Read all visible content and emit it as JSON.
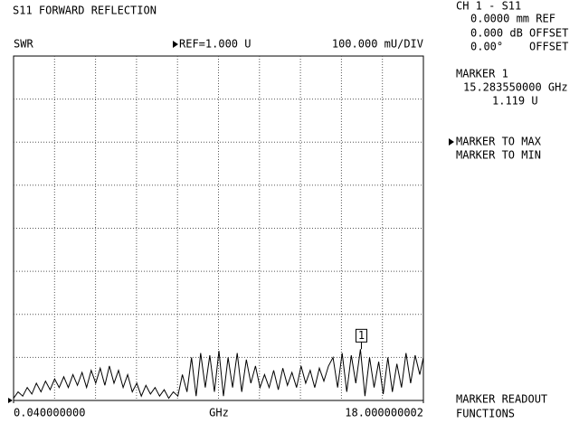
{
  "chart_data": {
    "type": "line",
    "title": "S11 FORWARD REFLECTION",
    "y_label": "SWR",
    "reference": "REF=1.000 U",
    "scale": "100.000 mU/DIV",
    "x_label": "GHz",
    "xlim": [
      0.04,
      18.000000002
    ],
    "ylim": [
      1.0,
      1.8
    ],
    "xticks": [
      {
        "value": 0.04,
        "label": "0.040000000"
      },
      {
        "value": 18.000000002,
        "label": "18.000000002"
      }
    ],
    "grid": true,
    "color": "#000000",
    "x": [
      0.04,
      0.24,
      0.44,
      0.64,
      0.84,
      1.04,
      1.24,
      1.44,
      1.64,
      1.84,
      2.04,
      2.24,
      2.44,
      2.64,
      2.84,
      3.04,
      3.24,
      3.44,
      3.64,
      3.84,
      4.04,
      4.24,
      4.44,
      4.64,
      4.84,
      5.04,
      5.24,
      5.44,
      5.64,
      5.84,
      6.04,
      6.24,
      6.44,
      6.64,
      6.84,
      7.04,
      7.24,
      7.44,
      7.64,
      7.84,
      8.04,
      8.24,
      8.44,
      8.64,
      8.84,
      9.04,
      9.24,
      9.44,
      9.64,
      9.84,
      10.04,
      10.24,
      10.44,
      10.64,
      10.84,
      11.04,
      11.24,
      11.44,
      11.64,
      11.84,
      12.04,
      12.24,
      12.44,
      12.64,
      12.84,
      13.04,
      13.24,
      13.44,
      13.64,
      13.84,
      14.04,
      14.24,
      14.44,
      14.64,
      14.84,
      15.04,
      15.24,
      15.44,
      15.64,
      15.84,
      16.04,
      16.24,
      16.44,
      16.64,
      16.84,
      17.04,
      17.24,
      17.44,
      17.64,
      17.84,
      18.000000002
    ],
    "values": [
      1.005,
      1.02,
      1.01,
      1.03,
      1.015,
      1.04,
      1.02,
      1.045,
      1.025,
      1.05,
      1.03,
      1.055,
      1.03,
      1.06,
      1.035,
      1.065,
      1.03,
      1.07,
      1.04,
      1.075,
      1.035,
      1.08,
      1.04,
      1.07,
      1.03,
      1.06,
      1.02,
      1.04,
      1.01,
      1.035,
      1.015,
      1.03,
      1.01,
      1.025,
      1.005,
      1.02,
      1.01,
      1.06,
      1.02,
      1.1,
      1.01,
      1.11,
      1.03,
      1.105,
      1.02,
      1.115,
      1.01,
      1.1,
      1.03,
      1.11,
      1.02,
      1.095,
      1.04,
      1.08,
      1.03,
      1.06,
      1.03,
      1.07,
      1.025,
      1.075,
      1.035,
      1.065,
      1.03,
      1.08,
      1.04,
      1.07,
      1.03,
      1.075,
      1.045,
      1.08,
      1.1,
      1.03,
      1.11,
      1.02,
      1.105,
      1.04,
      1.119,
      1.01,
      1.1,
      1.03,
      1.09,
      1.015,
      1.1,
      1.02,
      1.085,
      1.03,
      1.11,
      1.04,
      1.105,
      1.06,
      1.1
    ],
    "marker": {
      "label": "1",
      "x": 15.28355,
      "value": 1.119
    }
  },
  "side_panel": {
    "channel": "CH 1 - S11",
    "lines": [
      "0.0000 mm REF",
      "0.000 dB OFFSET",
      "0.00°    OFFSET"
    ],
    "marker_title": "MARKER 1",
    "marker_freq": "15.283550000 GHz",
    "marker_value": "1.119 U",
    "softkeys": [
      "MARKER TO MAX",
      "MARKER TO MIN"
    ],
    "bottom_keys": [
      "MARKER READOUT",
      "FUNCTIONS"
    ]
  }
}
